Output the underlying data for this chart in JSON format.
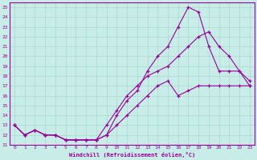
{
  "xlabel": "Windchill (Refroidissement éolien,°C)",
  "xlim": [
    -0.5,
    23.5
  ],
  "ylim": [
    11,
    25.5
  ],
  "xticks": [
    0,
    1,
    2,
    3,
    4,
    5,
    6,
    7,
    8,
    9,
    10,
    11,
    12,
    13,
    14,
    15,
    16,
    17,
    18,
    19,
    20,
    21,
    22,
    23
  ],
  "yticks": [
    11,
    12,
    13,
    14,
    15,
    16,
    17,
    18,
    19,
    20,
    21,
    22,
    23,
    24,
    25
  ],
  "bg_color": "#c8ede8",
  "line_color": "#990099",
  "grid_color": "#aad8cc",
  "line1_x": [
    0,
    1,
    2,
    3,
    4,
    5,
    6,
    7,
    8,
    9,
    10,
    11,
    12,
    13,
    14,
    15,
    16,
    17,
    18,
    19,
    20,
    21,
    22,
    23
  ],
  "line1_y": [
    13,
    12,
    12.5,
    12,
    12,
    11.5,
    11.5,
    11.5,
    11.5,
    12,
    13,
    14,
    15,
    16,
    17,
    17.5,
    16,
    16.5,
    17,
    17,
    17,
    17,
    17,
    17
  ],
  "line2_x": [
    0,
    1,
    2,
    3,
    4,
    5,
    6,
    7,
    8,
    9,
    10,
    11,
    12,
    13,
    14,
    15,
    16,
    17,
    18,
    19,
    20,
    21,
    22,
    23
  ],
  "line2_y": [
    13,
    12,
    12.5,
    12,
    12,
    11.5,
    11.5,
    11.5,
    11.5,
    12,
    14,
    15.5,
    16.5,
    18.5,
    20,
    21,
    23,
    25,
    24.5,
    21,
    18.5,
    18.5,
    18.5,
    17
  ],
  "line3_x": [
    0,
    1,
    2,
    3,
    4,
    5,
    6,
    7,
    8,
    9,
    10,
    11,
    12,
    13,
    14,
    15,
    16,
    17,
    18,
    19,
    20,
    21,
    22,
    23
  ],
  "line3_y": [
    13,
    12,
    12.5,
    12,
    12,
    11.5,
    11.5,
    11.5,
    11.5,
    13,
    14.5,
    16,
    17,
    18,
    18.5,
    19,
    20,
    21,
    22,
    22.5,
    21,
    20,
    18.5,
    17.5
  ]
}
